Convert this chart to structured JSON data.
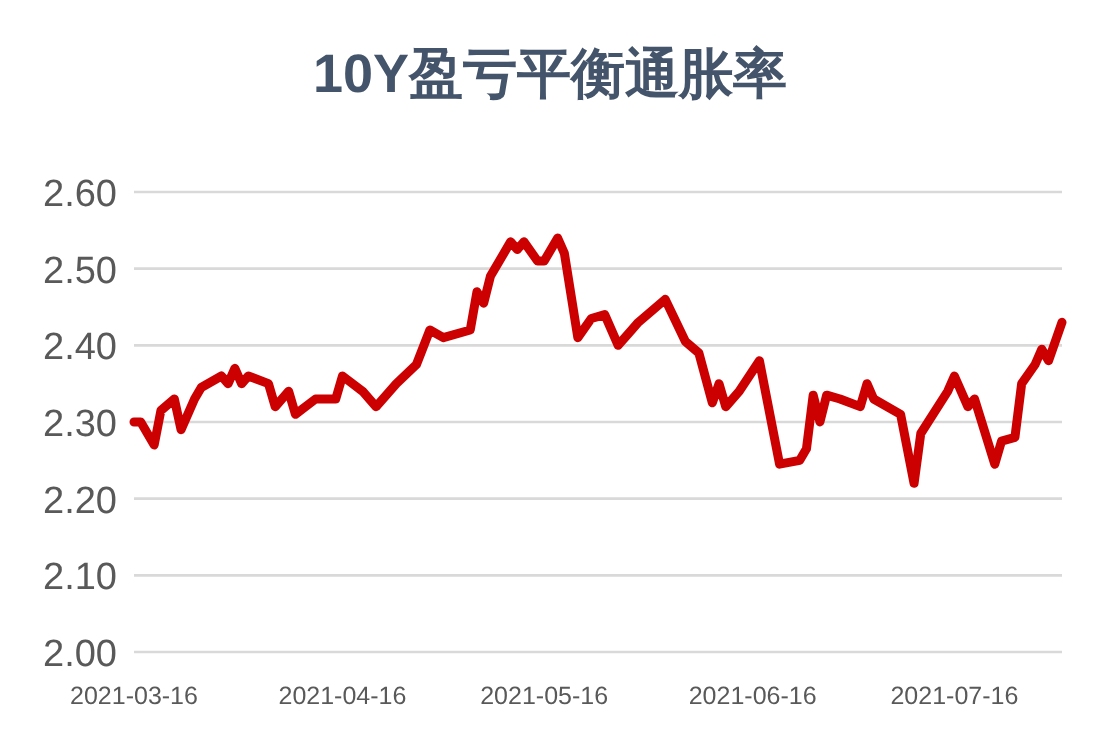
{
  "chart_data": {
    "type": "line",
    "title": "10Y盈亏平衡通胀率",
    "x": [
      "2021-03-16",
      "2021-03-17",
      "2021-03-19",
      "2021-03-20",
      "2021-03-22",
      "2021-03-23",
      "2021-03-25",
      "2021-03-26",
      "2021-03-29",
      "2021-03-30",
      "2021-03-31",
      "2021-04-01",
      "2021-04-02",
      "2021-04-05",
      "2021-04-06",
      "2021-04-08",
      "2021-04-09",
      "2021-04-12",
      "2021-04-15",
      "2021-04-16",
      "2021-04-19",
      "2021-04-21",
      "2021-04-24",
      "2021-04-27",
      "2021-04-29",
      "2021-05-01",
      "2021-05-05",
      "2021-05-06",
      "2021-05-07",
      "2021-05-08",
      "2021-05-11",
      "2021-05-12",
      "2021-05-13",
      "2021-05-15",
      "2021-05-16",
      "2021-05-18",
      "2021-05-19",
      "2021-05-21",
      "2021-05-23",
      "2021-05-25",
      "2021-05-27",
      "2021-05-29",
      "2021-05-30",
      "2021-06-03",
      "2021-06-06",
      "2021-06-08",
      "2021-06-10",
      "2021-06-11",
      "2021-06-12",
      "2021-06-14",
      "2021-06-17",
      "2021-06-20",
      "2021-06-23",
      "2021-06-24",
      "2021-06-25",
      "2021-06-26",
      "2021-06-27",
      "2021-06-29",
      "2021-07-02",
      "2021-07-03",
      "2021-07-04",
      "2021-07-08",
      "2021-07-10",
      "2021-07-11",
      "2021-07-15",
      "2021-07-16",
      "2021-07-18",
      "2021-07-19",
      "2021-07-22",
      "2021-07-23",
      "2021-07-25",
      "2021-07-26",
      "2021-07-28",
      "2021-07-29",
      "2021-07-30",
      "2021-08-01"
    ],
    "series": [
      {
        "color": "#cc0000",
        "values": [
          2.3,
          2.3,
          2.27,
          2.315,
          2.33,
          2.29,
          2.33,
          2.345,
          2.36,
          2.35,
          2.37,
          2.35,
          2.36,
          2.35,
          2.32,
          2.34,
          2.31,
          2.33,
          2.33,
          2.36,
          2.34,
          2.32,
          2.35,
          2.375,
          2.42,
          2.41,
          2.42,
          2.47,
          2.455,
          2.49,
          2.535,
          2.525,
          2.535,
          2.51,
          2.51,
          2.54,
          2.52,
          2.41,
          2.435,
          2.44,
          2.4,
          2.42,
          2.43,
          2.46,
          2.405,
          2.39,
          2.325,
          2.35,
          2.32,
          2.34,
          2.38,
          2.245,
          2.25,
          2.265,
          2.335,
          2.3,
          2.335,
          2.33,
          2.32,
          2.35,
          2.33,
          2.31,
          2.22,
          2.285,
          2.34,
          2.36,
          2.32,
          2.33,
          2.245,
          2.275,
          2.28,
          2.35,
          2.375,
          2.395,
          2.38,
          2.43
        ]
      }
    ],
    "xlim": [
      "2021-03-16",
      "2021-08-01"
    ],
    "xticks": [
      "2021-03-16",
      "2021-04-16",
      "2021-05-16",
      "2021-06-16",
      "2021-07-16"
    ],
    "ylim": [
      2.0,
      2.6
    ],
    "yticks": [
      {
        "value": 2.0,
        "label": "2.00"
      },
      {
        "value": 2.1,
        "label": "2.10"
      },
      {
        "value": 2.2,
        "label": "2.20"
      },
      {
        "value": 2.3,
        "label": "2.30"
      },
      {
        "value": 2.4,
        "label": "2.40"
      },
      {
        "value": 2.5,
        "label": "2.50"
      },
      {
        "value": 2.6,
        "label": "2.60"
      }
    ],
    "grid": "y",
    "marker": "none",
    "line_style": "solid"
  }
}
